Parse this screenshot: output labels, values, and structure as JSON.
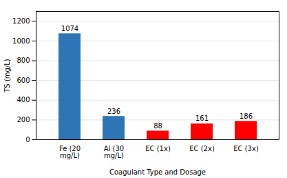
{
  "chart_data": {
    "type": "bar",
    "categories": [
      "Fe (20\nmg/L)",
      "Al (30\nmg/L)",
      "EC (1x)",
      "EC (2x)",
      "EC (3x)"
    ],
    "values": [
      1074,
      236,
      88,
      161,
      186
    ],
    "colors": [
      "#2E75B6",
      "#2E75B6",
      "#FF0000",
      "#FF0000",
      "#FF0000"
    ],
    "xlabel": "Coagulant Type and Dosage",
    "ylabel": "TS (mg/L)",
    "ylim": [
      0,
      1300
    ],
    "yticks": [
      0,
      200,
      400,
      600,
      800,
      1000,
      1200
    ],
    "grid": true,
    "data_labels": true
  }
}
